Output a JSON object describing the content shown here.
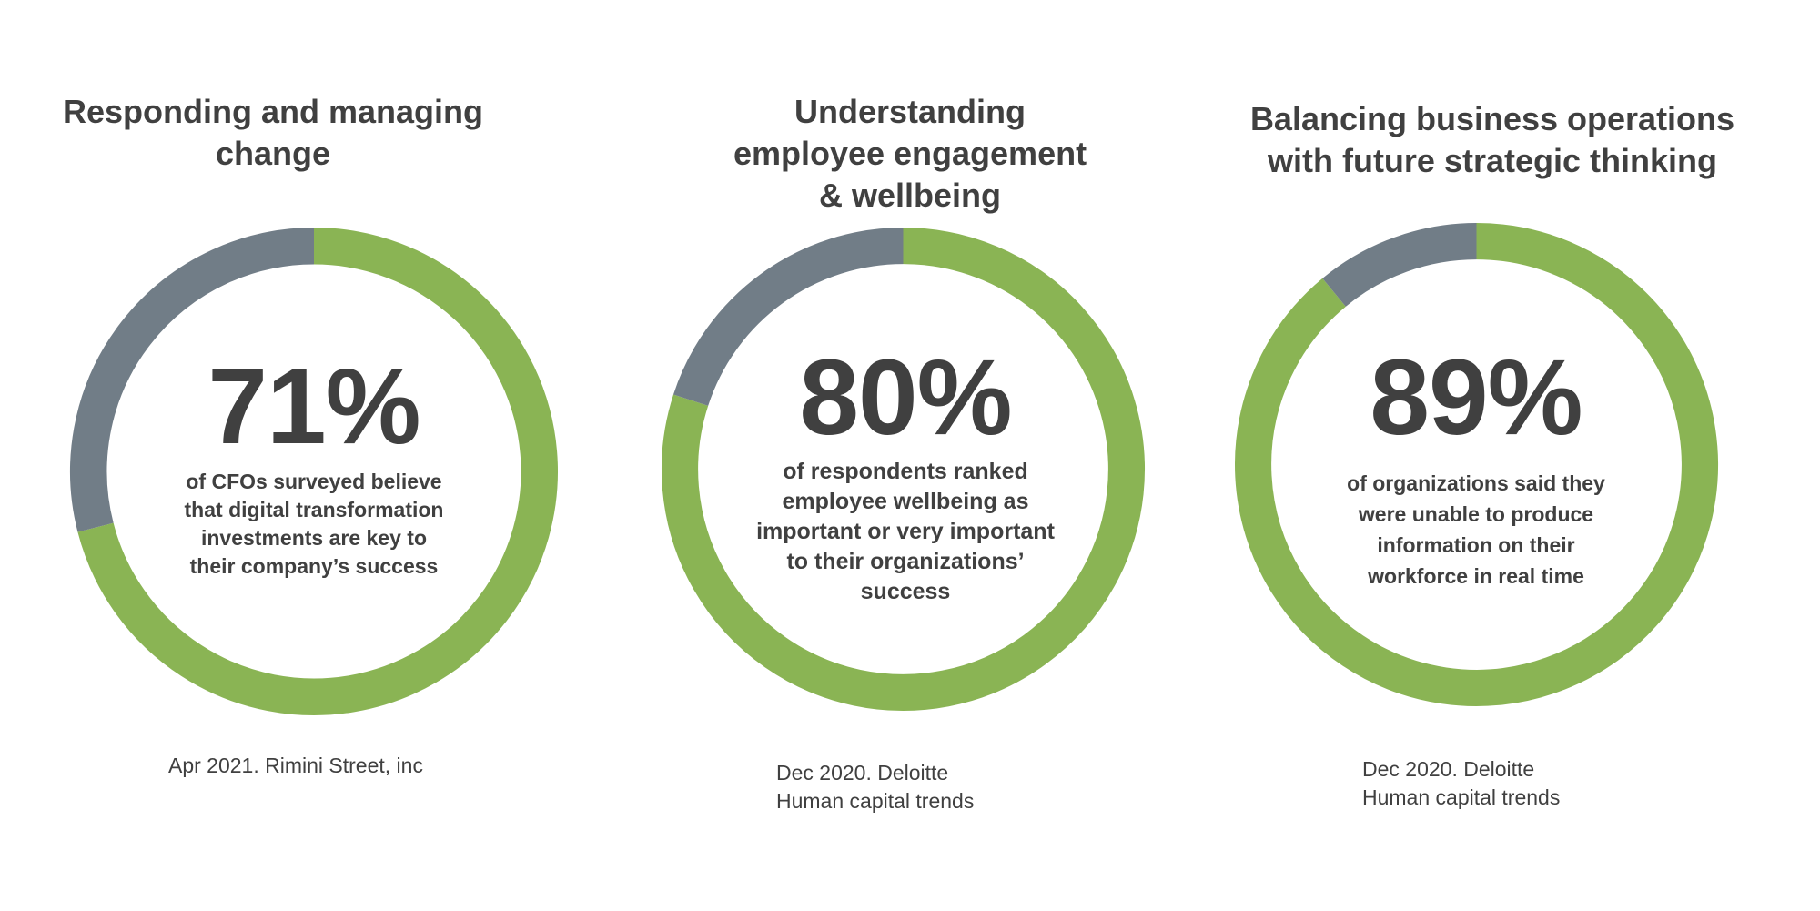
{
  "chart_data": [
    {
      "type": "pie",
      "title": "Responding and managing change",
      "values": [
        71,
        29
      ],
      "colors": [
        "#8ab454",
        "#717d87"
      ],
      "center_label": "71%",
      "description": "of CFOs surveyed believe that digital transformation investments are key to their company’s success",
      "source": [
        "Apr 2021. Rimini Street, inc"
      ]
    },
    {
      "type": "pie",
      "title": "Understanding employee engagement & wellbeing",
      "values": [
        80,
        20
      ],
      "colors": [
        "#8ab454",
        "#717d87"
      ],
      "center_label": "80%",
      "description": "of respondents ranked employee wellbeing as important or very important to their organizations’ success",
      "source": [
        "Dec 2020. Deloitte",
        "Human capital trends"
      ]
    },
    {
      "type": "pie",
      "title": "Balancing business operations with future strategic thinking",
      "values": [
        89,
        11
      ],
      "colors": [
        "#8ab454",
        "#717d87"
      ],
      "center_label": "89%",
      "description": "of organizations said they were unable to produce information on their workforce in real time",
      "source": [
        "Dec 2020. Deloitte",
        "Human capital trends"
      ]
    }
  ]
}
